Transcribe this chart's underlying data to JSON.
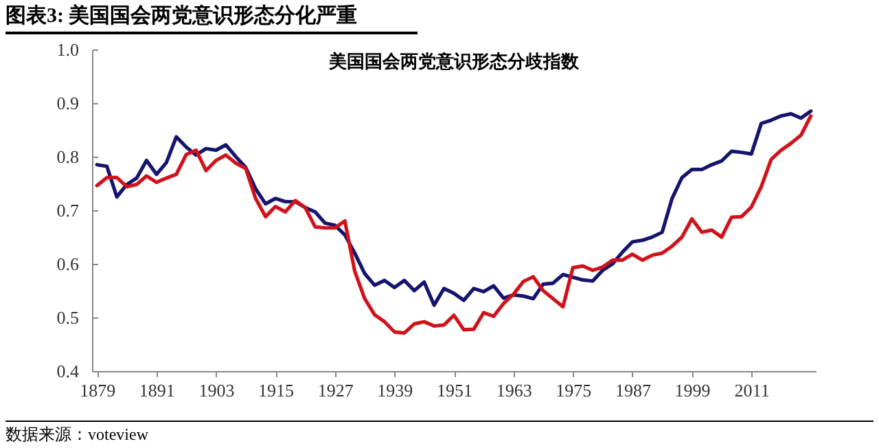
{
  "chart_data": {
    "type": "line",
    "title": "图表3: 美国国会两党意识形态分化严重",
    "subtitle": "美国国会两党意识形态分歧指数",
    "x": [
      1879,
      1881,
      1883,
      1885,
      1887,
      1889,
      1891,
      1893,
      1895,
      1897,
      1899,
      1901,
      1903,
      1905,
      1907,
      1909,
      1911,
      1913,
      1915,
      1917,
      1919,
      1921,
      1923,
      1925,
      1927,
      1929,
      1931,
      1933,
      1935,
      1937,
      1939,
      1941,
      1943,
      1945,
      1947,
      1949,
      1951,
      1953,
      1955,
      1957,
      1959,
      1961,
      1963,
      1965,
      1967,
      1969,
      1971,
      1973,
      1975,
      1977,
      1979,
      1981,
      1983,
      1985,
      1987,
      1989,
      1991,
      1993,
      1995,
      1997,
      1999,
      2001,
      2003,
      2005,
      2007,
      2009,
      2011,
      2013,
      2015,
      2017,
      2019,
      2021,
      2023
    ],
    "series": [
      {
        "color": "#15156e",
        "values": [
          0.785,
          0.782,
          0.725,
          0.748,
          0.76,
          0.793,
          0.767,
          0.789,
          0.837,
          0.818,
          0.803,
          0.815,
          0.812,
          0.822,
          0.8,
          0.78,
          0.74,
          0.712,
          0.722,
          0.716,
          0.716,
          0.705,
          0.697,
          0.676,
          0.672,
          0.654,
          0.62,
          0.582,
          0.56,
          0.569,
          0.556,
          0.569,
          0.55,
          0.566,
          0.523,
          0.554,
          0.545,
          0.532,
          0.554,
          0.548,
          0.559,
          0.536,
          0.542,
          0.54,
          0.535,
          0.562,
          0.564,
          0.58,
          0.575,
          0.57,
          0.568,
          0.588,
          0.6,
          0.622,
          0.641,
          0.644,
          0.65,
          0.659,
          0.722,
          0.761,
          0.776,
          0.776,
          0.785,
          0.792,
          0.81,
          0.808,
          0.805,
          0.862,
          0.868,
          0.876,
          0.88,
          0.872,
          0.885
        ]
      },
      {
        "color": "#d0121b",
        "values": [
          0.746,
          0.761,
          0.761,
          0.744,
          0.748,
          0.764,
          0.752,
          0.76,
          0.767,
          0.804,
          0.812,
          0.774,
          0.793,
          0.803,
          0.788,
          0.778,
          0.722,
          0.688,
          0.707,
          0.697,
          0.718,
          0.705,
          0.669,
          0.667,
          0.667,
          0.68,
          0.586,
          0.535,
          0.505,
          0.492,
          0.473,
          0.471,
          0.488,
          0.492,
          0.484,
          0.486,
          0.504,
          0.477,
          0.478,
          0.509,
          0.502,
          0.526,
          0.543,
          0.567,
          0.576,
          0.55,
          0.535,
          0.52,
          0.593,
          0.596,
          0.588,
          0.594,
          0.607,
          0.607,
          0.618,
          0.607,
          0.616,
          0.62,
          0.633,
          0.65,
          0.684,
          0.659,
          0.663,
          0.65,
          0.687,
          0.688,
          0.706,
          0.744,
          0.795,
          0.812,
          0.825,
          0.84,
          0.876
        ]
      }
    ],
    "xlim": [
      1878,
      2024
    ],
    "xticks": [
      1879,
      1891,
      1903,
      1915,
      1927,
      1939,
      1951,
      1963,
      1975,
      1987,
      1999,
      2011
    ],
    "ylim": [
      0.4,
      1.0
    ],
    "yticks": [
      0.4,
      0.5,
      0.6,
      0.7,
      0.8,
      0.9,
      {
        "value": 1.0,
        "label": "1.0"
      }
    ],
    "grid": false,
    "legend": false,
    "marker": "none",
    "line_style": "solid",
    "annotations": [
      "数据来源：voteview"
    ]
  }
}
